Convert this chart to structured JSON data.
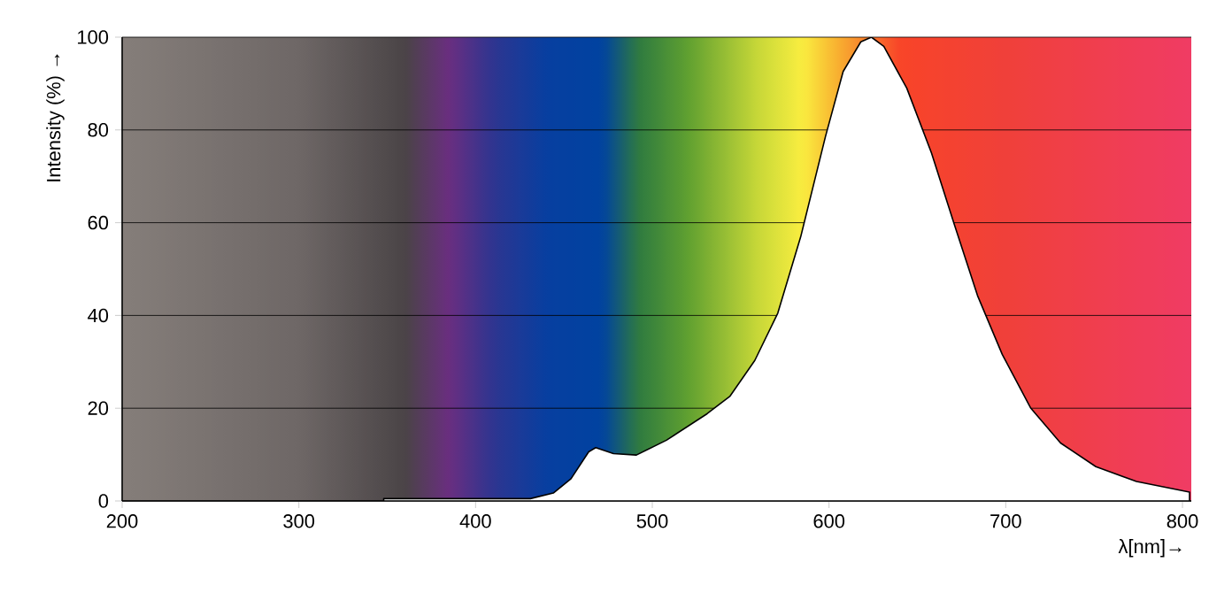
{
  "chart_data": {
    "type": "area",
    "xlabel": "λ[nm]→",
    "ylabel": "Intensity (%) →",
    "xlim": [
      200,
      805
    ],
    "ylim": [
      0,
      100
    ],
    "xticks": [
      200,
      300,
      400,
      500,
      600,
      700,
      800
    ],
    "yticks": [
      0,
      20,
      40,
      60,
      80,
      100
    ],
    "grid": "y",
    "series": [
      {
        "color": "#ffffff",
        "x": [
          348,
          431,
          444,
          454,
          464,
          468,
          478,
          491,
          508,
          531,
          544,
          558,
          571,
          584,
          598,
          608,
          618,
          624,
          631,
          644,
          658,
          671,
          684,
          698,
          714,
          731,
          751,
          774,
          804
        ],
        "values": [
          0.5,
          0.5,
          1.7,
          4.8,
          10.6,
          11.5,
          10.2,
          9.9,
          13.1,
          18.8,
          22.6,
          30.3,
          40.5,
          57,
          78.6,
          92.6,
          99,
          100,
          98,
          89,
          75,
          59.5,
          44.3,
          31.6,
          20.1,
          12.5,
          7.4,
          4.2,
          1.9
        ]
      }
    ]
  }
}
